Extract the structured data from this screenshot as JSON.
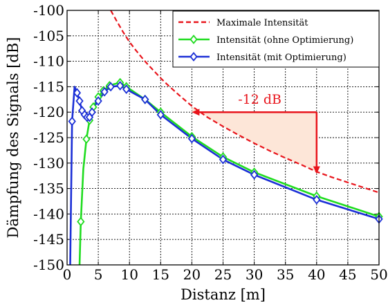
{
  "chart_data": {
    "type": "line",
    "xlabel": "Distanz [m]",
    "ylabel": "Dämpfung des Signals [dB]",
    "xlim": [
      0,
      50
    ],
    "ylim": [
      -150,
      -100
    ],
    "xticks": [
      "0",
      "5",
      "10",
      "15",
      "20",
      "25",
      "30",
      "35",
      "40",
      "45",
      "50"
    ],
    "yticks": [
      "-100",
      "-105",
      "-110",
      "-115",
      "-120",
      "-125",
      "-130",
      "-135",
      "-140",
      "-145",
      "-150"
    ],
    "grid": true,
    "legend_position": "top-right",
    "series": [
      {
        "name": "Maximale Intensität",
        "color": "#e8141b",
        "style": "dashed",
        "x": [
          7.0,
          8,
          9,
          10,
          11,
          12,
          13,
          14,
          15,
          16,
          18,
          20,
          22.5,
          25,
          27.5,
          30,
          32.5,
          35,
          37.5,
          40,
          42.5,
          45,
          47.5,
          50
        ],
        "y": [
          -100,
          -102.2,
          -104.3,
          -106.2,
          -107.8,
          -109.3,
          -110.7,
          -112.0,
          -113.3,
          -114.5,
          -116.7,
          -118.8,
          -121.0,
          -122.8,
          -124.5,
          -126.1,
          -127.6,
          -129.0,
          -130.3,
          -131.7,
          -132.8,
          -133.8,
          -134.8,
          -135.8
        ]
      },
      {
        "name": "Intensität (ohne Optimierung)",
        "color": "#1fdc1f",
        "marker": "diamond",
        "x": [
          2.0,
          2.2,
          2.6,
          3.1,
          3.6,
          4.2,
          5.0,
          5.8,
          6.8,
          7.5,
          8.5,
          9.5,
          12.5,
          15,
          20,
          25,
          30,
          40,
          50
        ],
        "y": [
          -150,
          -141.5,
          -131.2,
          -125.3,
          -121.6,
          -119.0,
          -117.0,
          -115.8,
          -114.8,
          -114.5,
          -114.2,
          -115.0,
          -117.5,
          -120.0,
          -124.8,
          -128.8,
          -131.8,
          -136.5,
          -140.5
        ]
      },
      {
        "name": "Intensität (mit Optimierung)",
        "color": "#1b2fd6",
        "marker": "diamond",
        "x": [
          0.5,
          0.8,
          1.2,
          1.6,
          2.0,
          2.4,
          2.8,
          3.2,
          3.6,
          4.0,
          4.4,
          5.0,
          6.0,
          7.0,
          8.5,
          9.5,
          12.5,
          15,
          20,
          25,
          30,
          40,
          50
        ],
        "y": [
          -150,
          -121.8,
          -115.0,
          -116.2,
          -117.8,
          -119.7,
          -120.5,
          -121.0,
          -121.0,
          -120.0,
          -118.8,
          -117.8,
          -116.0,
          -115.0,
          -114.8,
          -115.5,
          -117.5,
          -120.5,
          -125.2,
          -129.3,
          -132.3,
          -137.2,
          -141.0
        ]
      }
    ],
    "marker_x": [
      [
        2.2,
        3.1,
        3.6,
        4.2,
        5.0,
        5.8,
        6.8,
        8.5,
        9.5,
        12.5,
        15,
        20,
        25,
        30,
        40,
        50
      ],
      [
        0.8,
        1.6,
        2.0,
        2.4,
        2.8,
        3.2,
        3.6,
        4.0,
        5.0,
        6.0,
        7.0,
        8.5,
        9.5,
        12.5,
        15,
        20,
        25,
        30,
        40,
        50
      ]
    ],
    "annotation": {
      "text": "-12 dB",
      "color": "#e8141b",
      "fill": "#fde6d8",
      "x_start": 20,
      "y_start": -120,
      "x_end": 40,
      "y_end": -132
    }
  }
}
